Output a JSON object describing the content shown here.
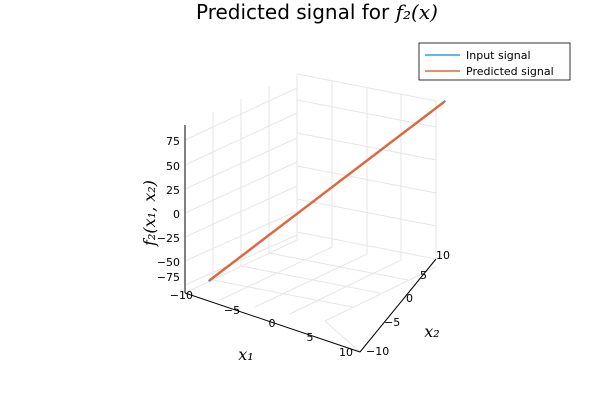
{
  "chart_data": {
    "type": "line",
    "title": "Predicted signal for",
    "title_math": "f₂(x)",
    "xlabel": "x₁",
    "ylabel": "x₂",
    "zlabel": "f₂(x₁, x₂)",
    "xlim": [
      -10,
      10
    ],
    "ylim": [
      -10,
      10
    ],
    "zlim": [
      -80,
      90
    ],
    "xticks": [
      "−10",
      "−5",
      "0",
      "5",
      "10"
    ],
    "yticks": [
      "−10",
      "−5",
      "0",
      "5",
      "10"
    ],
    "zticks": [
      "−75",
      "−50",
      "−25",
      "0",
      "25",
      "50",
      "75"
    ],
    "grid": true,
    "legend_position": "top-right",
    "series": [
      {
        "name": "Input signal",
        "color": "#2d9fe0",
        "x": [
          -10,
          -9,
          -8,
          -7,
          -6,
          -5,
          -4,
          -3,
          -2,
          -1,
          0,
          1,
          2,
          3,
          4,
          5,
          6,
          7,
          8,
          9,
          10
        ],
        "y": [
          -10,
          -9,
          -8,
          -7,
          -6,
          -5,
          -4,
          -3,
          -2,
          -1,
          0,
          1,
          2,
          3,
          4,
          5,
          6,
          7,
          8,
          9,
          10
        ],
        "z": [
          -82,
          -70,
          -63,
          -53,
          -45,
          -40,
          -30,
          -24,
          -17,
          -11,
          -4,
          7,
          12,
          21,
          30,
          38,
          49,
          56,
          64,
          78,
          88
        ]
      },
      {
        "name": "Predicted signal",
        "color": "#e2683c",
        "x": [
          -10,
          10
        ],
        "y": [
          -10,
          10
        ],
        "z": [
          -80,
          86
        ]
      }
    ]
  }
}
